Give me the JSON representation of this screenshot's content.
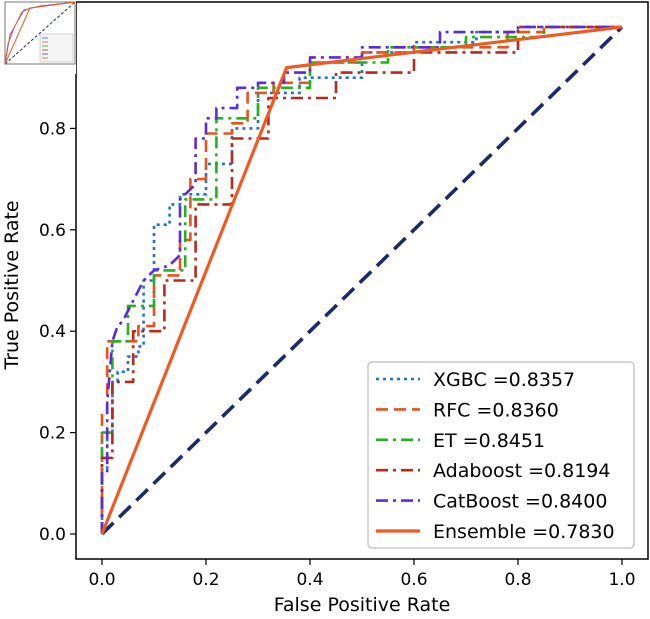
{
  "chart_data": {
    "type": "line",
    "title": "",
    "xlabel": "False Positive Rate",
    "ylabel": "True Positive Rate",
    "xlim": [
      0.0,
      1.0
    ],
    "ylim": [
      0.0,
      1.0
    ],
    "xticks": [
      "0.0",
      "0.2",
      "0.4",
      "0.6",
      "0.8",
      "1.0"
    ],
    "yticks": [
      "0.0",
      "0.2",
      "0.4",
      "0.6",
      "0.8"
    ],
    "legend_position": "lower-right",
    "series": [
      {
        "name": "XGBC",
        "auc": "0.8357",
        "legend_label": "XGBC =0.8357",
        "color": "#1f6fd6",
        "style": "dotted",
        "x": [
          0.0,
          0.0,
          0.01,
          0.01,
          0.02,
          0.02,
          0.03,
          0.03,
          0.05,
          0.05,
          0.07,
          0.07,
          0.08,
          0.08,
          0.1,
          0.1,
          0.13,
          0.13,
          0.15,
          0.15,
          0.2,
          0.2,
          0.25,
          0.25,
          0.3,
          0.3,
          0.38,
          0.38,
          0.5,
          0.5,
          0.6,
          0.6,
          0.72,
          0.72,
          0.8,
          0.8,
          0.9,
          0.9,
          1.0
        ],
        "y": [
          0.0,
          0.13,
          0.13,
          0.2,
          0.2,
          0.3,
          0.3,
          0.32,
          0.32,
          0.35,
          0.35,
          0.37,
          0.37,
          0.5,
          0.5,
          0.61,
          0.61,
          0.65,
          0.65,
          0.67,
          0.67,
          0.73,
          0.73,
          0.8,
          0.8,
          0.87,
          0.87,
          0.9,
          0.9,
          0.95,
          0.95,
          0.97,
          0.97,
          0.99,
          0.99,
          1.0,
          1.0,
          1.0,
          1.0
        ]
      },
      {
        "name": "RFC",
        "auc": "0.8360",
        "legend_label": "RFC =0.8360",
        "color": "#e8521e",
        "style": "dashed",
        "x": [
          0.0,
          0.0,
          0.01,
          0.01,
          0.03,
          0.03,
          0.07,
          0.07,
          0.1,
          0.1,
          0.15,
          0.15,
          0.17,
          0.17,
          0.2,
          0.2,
          0.25,
          0.25,
          0.28,
          0.28,
          0.33,
          0.33,
          0.4,
          0.4,
          0.5,
          0.5,
          0.6,
          0.6,
          0.78,
          0.78,
          0.85,
          0.85,
          1.0
        ],
        "y": [
          0.0,
          0.24,
          0.24,
          0.38,
          0.38,
          0.38,
          0.38,
          0.41,
          0.41,
          0.51,
          0.51,
          0.58,
          0.58,
          0.7,
          0.7,
          0.79,
          0.79,
          0.81,
          0.81,
          0.87,
          0.87,
          0.89,
          0.89,
          0.93,
          0.93,
          0.95,
          0.95,
          0.96,
          0.96,
          0.99,
          0.99,
          1.0,
          1.0
        ]
      },
      {
        "name": "ET",
        "auc": "0.8451",
        "legend_label": "ET =0.8451",
        "color": "#22b21e",
        "style": "dashdot",
        "x": [
          0.0,
          0.0,
          0.02,
          0.02,
          0.05,
          0.05,
          0.1,
          0.1,
          0.16,
          0.16,
          0.22,
          0.22,
          0.3,
          0.3,
          0.4,
          0.4,
          0.55,
          0.55,
          0.7,
          0.7,
          0.85,
          0.85,
          1.0
        ],
        "y": [
          0.0,
          0.2,
          0.2,
          0.38,
          0.38,
          0.45,
          0.45,
          0.52,
          0.52,
          0.66,
          0.66,
          0.82,
          0.82,
          0.88,
          0.88,
          0.93,
          0.93,
          0.96,
          0.96,
          0.98,
          0.98,
          1.0,
          1.0
        ]
      },
      {
        "name": "Adaboost",
        "auc": "0.8194",
        "legend_label": "Adaboost =0.8194",
        "color": "#b52a1a",
        "style": "dashdot",
        "x": [
          0.0,
          0.0,
          0.02,
          0.02,
          0.06,
          0.06,
          0.12,
          0.12,
          0.18,
          0.18,
          0.25,
          0.25,
          0.32,
          0.32,
          0.45,
          0.45,
          0.6,
          0.6,
          0.8,
          0.8,
          1.0
        ],
        "y": [
          0.0,
          0.15,
          0.15,
          0.3,
          0.3,
          0.4,
          0.4,
          0.5,
          0.5,
          0.65,
          0.65,
          0.78,
          0.78,
          0.86,
          0.86,
          0.91,
          0.91,
          0.95,
          0.95,
          1.0,
          1.0
        ]
      },
      {
        "name": "CatBoost",
        "auc": "0.8400",
        "legend_label": "CatBoost =0.8400",
        "color": "#5a2bd9",
        "style": "dashdot",
        "x": [
          0.0,
          0.0,
          0.01,
          0.01,
          0.015,
          0.02,
          0.03,
          0.04,
          0.05,
          0.07,
          0.08,
          0.1,
          0.13,
          0.15,
          0.15,
          0.17,
          0.18,
          0.18,
          0.2,
          0.2,
          0.22,
          0.22,
          0.26,
          0.26,
          0.3,
          0.3,
          0.35,
          0.35,
          0.4,
          0.4,
          0.5,
          0.5,
          0.65,
          0.65,
          0.8,
          0.8,
          1.0
        ],
        "y": [
          0.0,
          0.12,
          0.12,
          0.26,
          0.32,
          0.38,
          0.41,
          0.42,
          0.44,
          0.48,
          0.5,
          0.52,
          0.53,
          0.55,
          0.66,
          0.68,
          0.69,
          0.78,
          0.78,
          0.82,
          0.82,
          0.84,
          0.84,
          0.88,
          0.88,
          0.89,
          0.89,
          0.91,
          0.91,
          0.94,
          0.94,
          0.96,
          0.96,
          0.99,
          0.99,
          1.0,
          1.0
        ]
      },
      {
        "name": "Ensemble",
        "auc": "0.7830",
        "legend_label": "Ensemble =0.7830",
        "color": "#f05a22",
        "style": "solid",
        "x": [
          0.0,
          0.355,
          1.0
        ],
        "y": [
          0.0,
          0.92,
          1.0
        ]
      }
    ],
    "reference_line": {
      "x": [
        0.0,
        1.0
      ],
      "y": [
        0.0,
        1.0
      ],
      "color": "#1c2a6b",
      "style": "dashed"
    }
  }
}
